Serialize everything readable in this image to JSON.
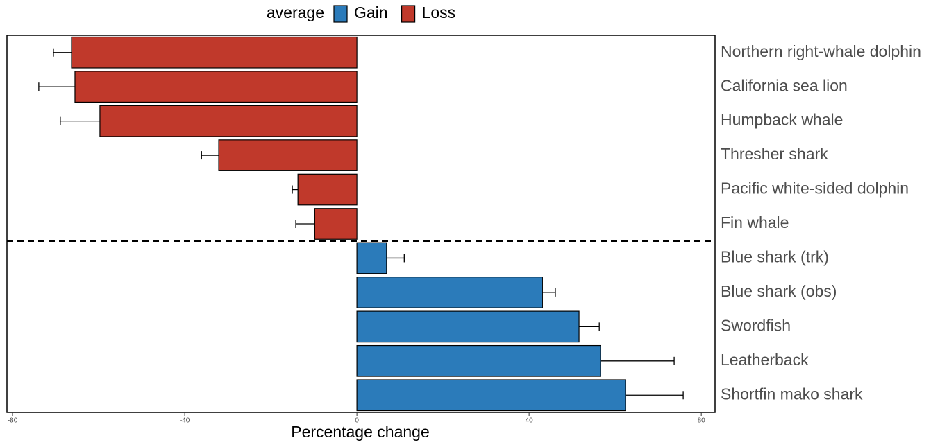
{
  "chart_data": {
    "type": "bar",
    "orientation": "horizontal",
    "x_label": "Percentage change",
    "legend_title": "average",
    "legend_position": "top",
    "categories": [
      "Northern right-whale dolphin",
      "California sea lion",
      "Humpback whale",
      "Thresher shark",
      "Pacific white-sided dolphin",
      "Fin whale",
      "Blue shark (trk)",
      "Blue shark (obs)",
      "Swordfish",
      "Leatherback",
      "Shortfin mako shark"
    ],
    "series": [
      {
        "name": "Gain",
        "color": "#2b7bba",
        "values": [
          null,
          null,
          null,
          null,
          null,
          null,
          6.9,
          43.1,
          51.6,
          56.6,
          62.4
        ],
        "errors": [
          null,
          null,
          null,
          null,
          null,
          null,
          4.1,
          3.0,
          4.7,
          17.1,
          13.4
        ]
      },
      {
        "name": "Loss",
        "color": "#c0392b",
        "values": [
          -66.3,
          -65.5,
          -59.7,
          -32.1,
          -13.7,
          -9.8,
          null,
          null,
          null,
          null,
          null
        ],
        "errors": [
          4.2,
          8.4,
          9.2,
          4.0,
          1.3,
          4.4,
          null,
          null,
          null,
          null,
          null
        ]
      }
    ],
    "xlim": [
      -81.3,
      83.2
    ],
    "xticks": [
      -80,
      -40,
      0,
      40,
      80
    ]
  }
}
